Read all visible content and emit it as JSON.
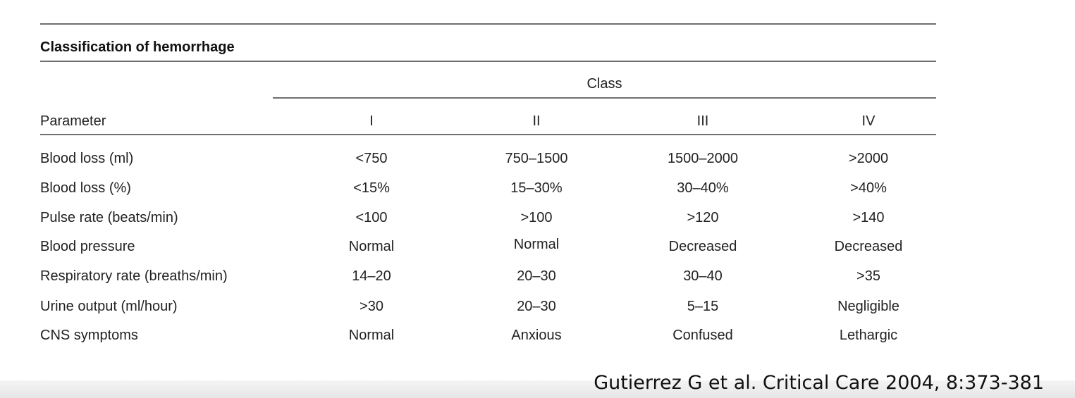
{
  "table": {
    "title": "Classification of hemorrhage",
    "class_heading": "Class",
    "parameter_heading": "Parameter",
    "columns": [
      "I",
      "II",
      "III",
      "IV"
    ],
    "rows": [
      {
        "label": "Blood loss (ml)",
        "values": [
          "<750",
          "750–1500",
          "1500–2000",
          ">2000"
        ]
      },
      {
        "label": "Blood loss (%)",
        "values": [
          "<15%",
          "15–30%",
          "30–40%",
          ">40%"
        ]
      },
      {
        "label": "Pulse rate (beats/min)",
        "values": [
          "<100",
          ">100",
          ">120",
          ">140"
        ]
      },
      {
        "label": "Blood pressure",
        "values": [
          "Normal",
          "Normal",
          "Decreased",
          "Decreased"
        ]
      },
      {
        "label": "Respiratory rate (breaths/min)",
        "values": [
          "14–20",
          "20–30",
          "30–40",
          ">35"
        ]
      },
      {
        "label": "Urine output (ml/hour)",
        "values": [
          ">30",
          "20–30",
          "5–15",
          "Negligible"
        ]
      },
      {
        "label": "CNS symptoms",
        "values": [
          "Normal",
          "Anxious",
          "Confused",
          "Lethargic"
        ]
      }
    ]
  },
  "citation": "Gutierrez G et al. Critical Care 2004, 8:373-381"
}
